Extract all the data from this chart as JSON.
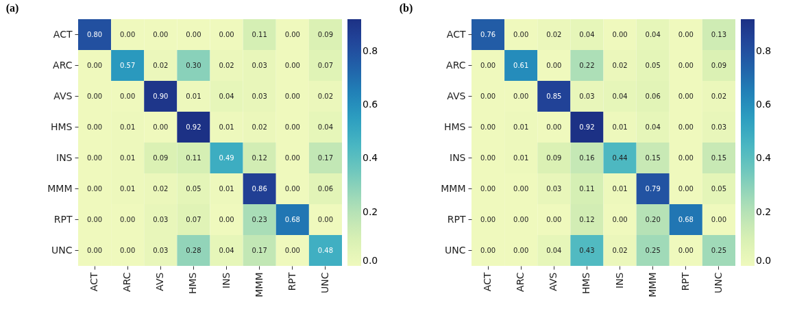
{
  "chart_data": [
    {
      "type": "heatmap",
      "title": "(a)",
      "categories": [
        "ACT",
        "ARC",
        "AVS",
        "HMS",
        "INS",
        "MMM",
        "RPT",
        "UNC"
      ],
      "y_categories": [
        "ACT",
        "ARC",
        "AVS",
        "HMS",
        "INS",
        "MMM",
        "RPT",
        "UNC"
      ],
      "cells": [
        [
          0.8,
          0,
          0,
          0,
          0,
          0.11,
          0,
          0.09
        ],
        [
          0,
          0.57,
          0.02,
          0.3,
          0.02,
          0.03,
          0,
          0.07
        ],
        [
          0,
          0,
          0.9,
          0.01,
          0.04,
          0.03,
          0,
          0.02
        ],
        [
          0,
          0.01,
          0,
          0.92,
          0.01,
          0.02,
          0,
          0.04
        ],
        [
          0,
          0.01,
          0.09,
          0.11,
          0.49,
          0.12,
          0,
          0.17
        ],
        [
          0,
          0.01,
          0.02,
          0.05,
          0.01,
          0.86,
          0,
          0.06
        ],
        [
          0,
          0,
          0.03,
          0.07,
          0,
          0.23,
          0.68,
          0
        ],
        [
          0,
          0,
          0.03,
          0.28,
          0.04,
          0.17,
          0,
          0.48
        ]
      ],
      "cell_labels": [
        [
          "0.80",
          "0.00",
          "0.00",
          "0.00",
          "0.00",
          "0.11",
          "0.00",
          "0.09"
        ],
        [
          "0.00",
          "0.57",
          "0.02",
          "0.30",
          "0.02",
          "0.03",
          "0.00",
          "0.07"
        ],
        [
          "0.00",
          "0.00",
          "0.90",
          "0.01",
          "0.04",
          "0.03",
          "0.00",
          "0.02"
        ],
        [
          "0.00",
          "0.01",
          "0.00",
          "0.92",
          "0.01",
          "0.02",
          "0.00",
          "0.04"
        ],
        [
          "0.00",
          "0.01",
          "0.09",
          "0.11",
          "0.49",
          "0.12",
          "0.00",
          "0.17"
        ],
        [
          "0.00",
          "0.01",
          "0.02",
          "0.05",
          "0.01",
          "0.86",
          "0.00",
          "0.06"
        ],
        [
          "0.00",
          "0.00",
          "0.03",
          "0.07",
          "0.00",
          "0.23",
          "0.68",
          "0.00"
        ],
        [
          "0.00",
          "0.00",
          "0.03",
          "0.28",
          "0.04",
          "0.17",
          "0.00",
          "0.48"
        ]
      ],
      "clim": [
        0,
        0.92
      ],
      "cticks": [
        {
          "value": 0,
          "label": "0.0"
        },
        0.2,
        0.4,
        0.6,
        0.8
      ]
    },
    {
      "type": "heatmap",
      "title": "(b)",
      "categories": [
        "ACT",
        "ARC",
        "AVS",
        "HMS",
        "INS",
        "MMM",
        "RPT",
        "UNC"
      ],
      "y_categories": [
        "ACT",
        "ARC",
        "AVS",
        "HMS",
        "INS",
        "MMM",
        "RPT",
        "UNC"
      ],
      "cells": [
        [
          0.76,
          0,
          0.02,
          0.04,
          0,
          0.04,
          0,
          0.13
        ],
        [
          0,
          0.61,
          0,
          0.22,
          0.02,
          0.05,
          0,
          0.09
        ],
        [
          0,
          0,
          0.85,
          0.03,
          0.04,
          0.06,
          0,
          0.02
        ],
        [
          0,
          0.01,
          0,
          0.92,
          0.01,
          0.04,
          0,
          0.03
        ],
        [
          0,
          0.01,
          0.09,
          0.16,
          0.44,
          0.15,
          0,
          0.15
        ],
        [
          0,
          0,
          0.03,
          0.11,
          0.01,
          0.79,
          0,
          0.05
        ],
        [
          0,
          0,
          0,
          0.12,
          0,
          0.2,
          0.68,
          0
        ],
        [
          0,
          0,
          0.04,
          0.43,
          0.02,
          0.25,
          0,
          0.25
        ]
      ],
      "cell_labels": [
        [
          "0.76",
          "0.00",
          "0.02",
          "0.04",
          "0.00",
          "0.04",
          "0.00",
          "0.13"
        ],
        [
          "0.00",
          "0.61",
          "0.00",
          "0.22",
          "0.02",
          "0.05",
          "0.00",
          "0.09"
        ],
        [
          "0.00",
          "0.00",
          "0.85",
          "0.03",
          "0.04",
          "0.06",
          "0.00",
          "0.02"
        ],
        [
          "0.00",
          "0.01",
          "0.00",
          "0.92",
          "0.01",
          "0.04",
          "0.00",
          "0.03"
        ],
        [
          "0.00",
          "0.01",
          "0.09",
          "0.16",
          "0.44",
          "0.15",
          "0.00",
          "0.15"
        ],
        [
          "0.00",
          "0.00",
          "0.03",
          "0.11",
          "0.01",
          "0.79",
          "0.00",
          "0.05"
        ],
        [
          "0.00",
          "0.00",
          "0.00",
          "0.12",
          "0.00",
          "0.20",
          "0.68",
          "0.00"
        ],
        [
          "0.00",
          "0.00",
          "0.04",
          "0.43",
          "0.02",
          "0.25",
          "0.00",
          "0.25"
        ]
      ],
      "clim": [
        0,
        0.92
      ],
      "cticks": [
        {
          "value": 0,
          "label": "0.0"
        },
        0.2,
        0.4,
        0.6,
        0.8
      ]
    }
  ]
}
